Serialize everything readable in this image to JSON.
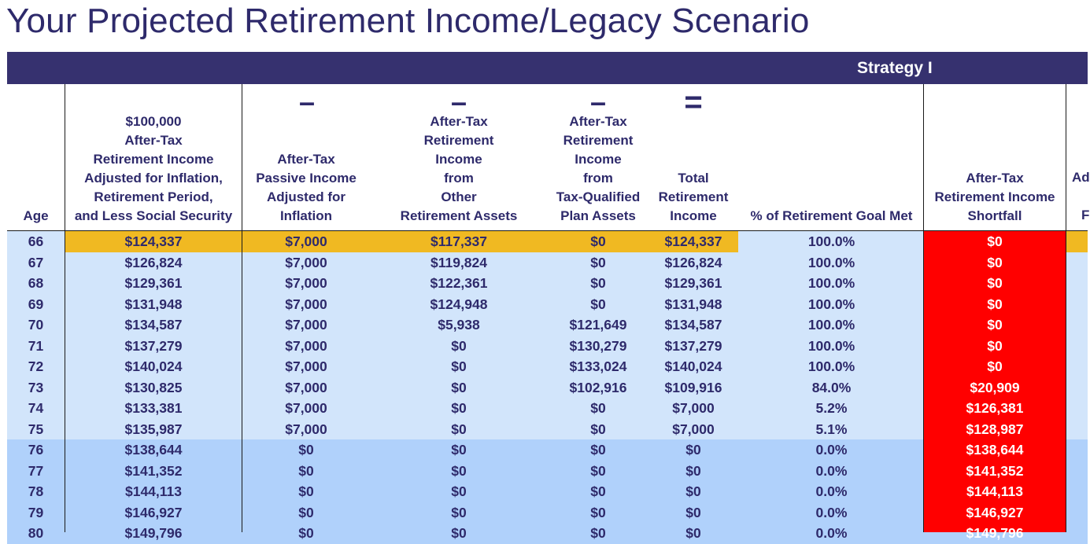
{
  "title": "Your Projected Retirement Income/Legacy Scenario",
  "strategy": "Strategy I",
  "operators": {
    "minus": "–",
    "equals": "="
  },
  "headers": {
    "age": "Age",
    "goal": "$100,000\nAfter-Tax\nRetirement Income\nAdjusted for Inflation,\nRetirement Period,\nand Less Social Security",
    "passive": "After-Tax\nPassive Income\nAdjusted for\nInflation",
    "other": "After-Tax\nRetirement\nIncome\nfrom\nOther\nRetirement Assets",
    "qualified": "After-Tax\nRetirement\nIncome\nfrom\nTax-Qualified\nPlan Assets",
    "total": "Total\nRetirement\nIncome",
    "pct": "% of Retirement Goal Met",
    "shortfall": "After-Tax\nRetirement Income\nShortfall",
    "cut_top": "Ad",
    "cut_bottom": "F"
  },
  "colors": {
    "title": "#2e2a6b",
    "bar": "#36316f",
    "highlight": "#f0b922",
    "band_a": "#d2e5fb",
    "band_b": "#b0d1fb",
    "shortfall": "#ff0000"
  },
  "rows": [
    {
      "age": "66",
      "goal": "$124,337",
      "passive": "$7,000",
      "other": "$117,337",
      "qualified": "$0",
      "total": "$124,337",
      "pct": "100.0%",
      "shortfall": "$0"
    },
    {
      "age": "67",
      "goal": "$126,824",
      "passive": "$7,000",
      "other": "$119,824",
      "qualified": "$0",
      "total": "$126,824",
      "pct": "100.0%",
      "shortfall": "$0"
    },
    {
      "age": "68",
      "goal": "$129,361",
      "passive": "$7,000",
      "other": "$122,361",
      "qualified": "$0",
      "total": "$129,361",
      "pct": "100.0%",
      "shortfall": "$0"
    },
    {
      "age": "69",
      "goal": "$131,948",
      "passive": "$7,000",
      "other": "$124,948",
      "qualified": "$0",
      "total": "$131,948",
      "pct": "100.0%",
      "shortfall": "$0"
    },
    {
      "age": "70",
      "goal": "$134,587",
      "passive": "$7,000",
      "other": "$5,938",
      "qualified": "$121,649",
      "total": "$134,587",
      "pct": "100.0%",
      "shortfall": "$0"
    },
    {
      "age": "71",
      "goal": "$137,279",
      "passive": "$7,000",
      "other": "$0",
      "qualified": "$130,279",
      "total": "$137,279",
      "pct": "100.0%",
      "shortfall": "$0"
    },
    {
      "age": "72",
      "goal": "$140,024",
      "passive": "$7,000",
      "other": "$0",
      "qualified": "$133,024",
      "total": "$140,024",
      "pct": "100.0%",
      "shortfall": "$0"
    },
    {
      "age": "73",
      "goal": "$130,825",
      "passive": "$7,000",
      "other": "$0",
      "qualified": "$102,916",
      "total": "$109,916",
      "pct": "84.0%",
      "shortfall": "$20,909"
    },
    {
      "age": "74",
      "goal": "$133,381",
      "passive": "$7,000",
      "other": "$0",
      "qualified": "$0",
      "total": "$7,000",
      "pct": "5.2%",
      "shortfall": "$126,381"
    },
    {
      "age": "75",
      "goal": "$135,987",
      "passive": "$7,000",
      "other": "$0",
      "qualified": "$0",
      "total": "$7,000",
      "pct": "5.1%",
      "shortfall": "$128,987"
    },
    {
      "age": "76",
      "goal": "$138,644",
      "passive": "$0",
      "other": "$0",
      "qualified": "$0",
      "total": "$0",
      "pct": "0.0%",
      "shortfall": "$138,644"
    },
    {
      "age": "77",
      "goal": "$141,352",
      "passive": "$0",
      "other": "$0",
      "qualified": "$0",
      "total": "$0",
      "pct": "0.0%",
      "shortfall": "$141,352"
    },
    {
      "age": "78",
      "goal": "$144,113",
      "passive": "$0",
      "other": "$0",
      "qualified": "$0",
      "total": "$0",
      "pct": "0.0%",
      "shortfall": "$144,113"
    },
    {
      "age": "79",
      "goal": "$146,927",
      "passive": "$0",
      "other": "$0",
      "qualified": "$0",
      "total": "$0",
      "pct": "0.0%",
      "shortfall": "$146,927"
    },
    {
      "age": "80",
      "goal": "$149,796",
      "passive": "$0",
      "other": "$0",
      "qualified": "$0",
      "total": "$0",
      "pct": "0.0%",
      "shortfall": "$149,796"
    }
  ]
}
